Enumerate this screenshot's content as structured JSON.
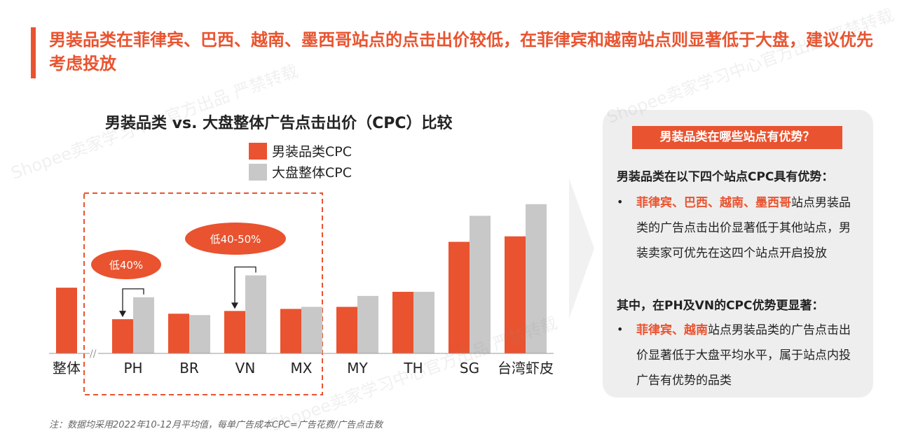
{
  "title": "男装品类在菲律宾、巴西、越南、墨西哥站点的点击出价较低，在菲律宾和越南站点则显著低于大盘，建议优先考虑投放",
  "chart_data": {
    "type": "bar",
    "title": "男装品类 vs. 大盘整体广告点击出价（CPC）比较",
    "categories": [
      "整体",
      "PH",
      "BR",
      "VN",
      "MX",
      "MY",
      "TH",
      "SG",
      "台湾虾皮"
    ],
    "series": [
      {
        "name": "男装品类CPC",
        "color": "#e9532f",
        "values": [
          96,
          50,
          58,
          62,
          65,
          68,
          90,
          163,
          171
        ]
      },
      {
        "name": "大盘整体CPC",
        "color": "#c8c8c8",
        "values": [
          null,
          82,
          56,
          114,
          68,
          84,
          90,
          201,
          218
        ]
      }
    ],
    "ylim": [
      0,
      230
    ],
    "grid": false,
    "legend_position": "top-left",
    "axis_break_label": "//",
    "annotations": {
      "ph": "低40%",
      "vn": "低40-50%"
    }
  },
  "footnote": "注：数据均采用2022年10-12月平均值，每单广告成本CPC=广告花费/广告点击数",
  "panel": {
    "header": "男装品类在哪些站点有优势？",
    "heading1": "男装品类在以下四个站点CPC具有优势：",
    "bullet1_highlight": "菲律宾、巴西、越南、墨西哥",
    "bullet1_text": "站点男装品类的广告点击出价显著低于其他站点，男装卖家可优先在这四个站点开启投放",
    "heading2": "其中，在PH及VN的CPC优势更显著：",
    "bullet2_highlight": "菲律宾、越南",
    "bullet2_text": "站点男装品类的广告点击出价显著低于大盘平均水平，属于站点内投广告有优势的品类",
    "bullet_glyph": "•"
  },
  "watermark": "Shopee卖家学习中心官方出品 严禁转载",
  "colors": {
    "accent": "#e9532f",
    "gray": "#c8c8c8",
    "panel_bg": "#eeeeee"
  }
}
